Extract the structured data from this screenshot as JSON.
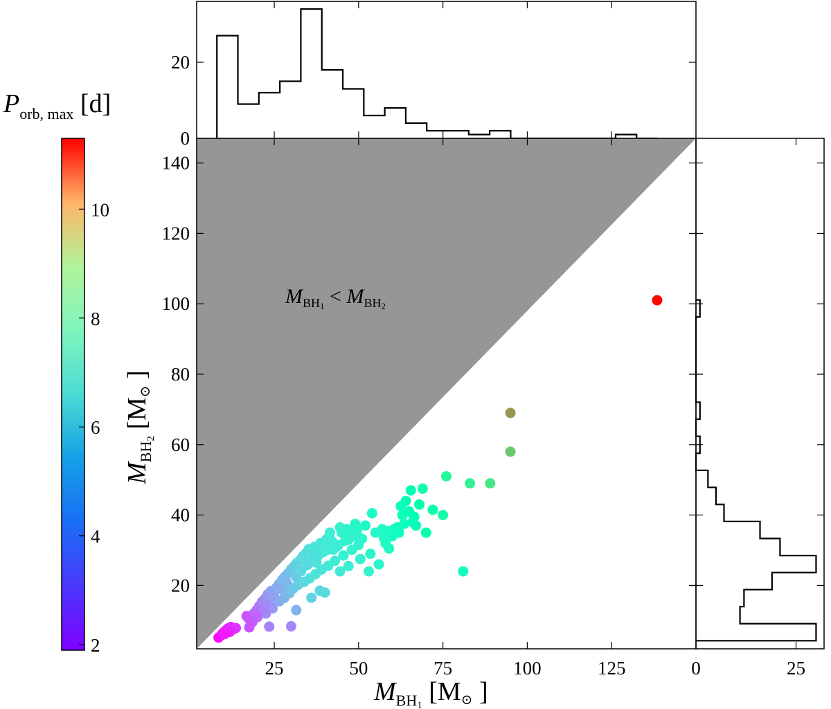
{
  "chart_data": {
    "type": "scatter",
    "region_label": {
      "main": "M",
      "sub1": "BH",
      "sub1_idx": "1",
      "op": " < ",
      "main2": "M",
      "sub2": "BH",
      "sub2_idx": "2"
    },
    "x_axis": {
      "label_main": "M",
      "label_sub": "BH",
      "label_sub_idx": "1",
      "label_units": "[M",
      "label_units_close": "]",
      "sun_symbol": "⊙",
      "ticks": [
        25,
        50,
        75,
        100,
        125
      ],
      "range": [
        2.0,
        150.0
      ]
    },
    "y_axis": {
      "label_main": "M",
      "label_sub": "BH",
      "label_sub_idx": "2",
      "label_units": "[M",
      "label_units_close": "]",
      "sun_symbol": "⊙",
      "ticks": [
        20,
        40,
        60,
        80,
        100,
        120,
        140
      ],
      "range": [
        2.0,
        147.0
      ]
    },
    "colorbar": {
      "title_main": "P",
      "title_sub": "orb, max",
      "title_units": "[d]",
      "ticks": [
        2,
        4,
        6,
        8,
        10
      ],
      "range": [
        1.9,
        11.3
      ],
      "colormap": "rainbow"
    },
    "top_hist": {
      "edges": [
        8,
        14.22,
        20.44,
        26.66,
        32.88,
        39.1,
        45.32,
        51.54,
        57.76,
        63.98,
        70.2,
        76.42,
        82.64,
        88.86,
        95.08,
        101.3,
        107.52,
        113.74,
        119.96,
        126.18,
        132.4,
        138.62
      ],
      "counts": [
        27,
        9,
        12,
        15,
        34,
        18,
        13,
        6,
        8,
        4,
        2,
        2,
        1,
        2,
        0,
        0,
        0,
        0,
        0,
        1,
        0
      ],
      "ticks": [
        0,
        20
      ],
      "range": [
        0,
        36
      ]
    },
    "right_hist": {
      "edges": [
        4.3,
        9.14,
        13.98,
        18.82,
        23.66,
        28.5,
        33.34,
        38.18,
        43.02,
        47.86,
        52.7,
        57.54,
        62.38,
        67.22,
        72.06,
        76.9,
        81.74,
        86.58,
        91.42,
        96.26,
        101.1
      ],
      "counts": [
        30,
        11,
        12,
        19,
        30,
        21,
        16,
        7,
        5,
        3,
        0,
        1,
        0,
        1,
        0,
        0,
        0,
        0,
        0,
        1
      ],
      "ticks": [
        0,
        25
      ],
      "range": [
        0,
        32
      ]
    },
    "points": [
      [
        8.5,
        5.2,
        2.0
      ],
      [
        9.2,
        5.8,
        2.1
      ],
      [
        9.8,
        6.5,
        2.1
      ],
      [
        10.6,
        7.2,
        2.3
      ],
      [
        11.3,
        7.8,
        2.3
      ],
      [
        12.1,
        8.2,
        2.4
      ],
      [
        12.8,
        7.5,
        2.4
      ],
      [
        13.6,
        7.9,
        2.5
      ],
      [
        11.8,
        6.8,
        2.3
      ],
      [
        10.3,
        6.2,
        2.2
      ],
      [
        17.5,
        10.5,
        3.0
      ],
      [
        18.2,
        11.2,
        3.0
      ],
      [
        19.0,
        12.1,
        3.2
      ],
      [
        19.8,
        13.0,
        3.3
      ],
      [
        20.6,
        14.2,
        3.4
      ],
      [
        21.4,
        15.4,
        3.5
      ],
      [
        22.3,
        16.3,
        3.7
      ],
      [
        23.1,
        17.5,
        3.8
      ],
      [
        24.0,
        18.4,
        3.9
      ],
      [
        24.8,
        17.3,
        3.9
      ],
      [
        25.6,
        19.3,
        4.1
      ],
      [
        26.4,
        20.4,
        4.2
      ],
      [
        27.3,
        21.6,
        4.3
      ],
      [
        28.2,
        22.5,
        4.3
      ],
      [
        29.1,
        23.4,
        4.4
      ],
      [
        30.0,
        24.6,
        4.6
      ],
      [
        30.9,
        25.5,
        4.7
      ],
      [
        31.7,
        26.4,
        4.8
      ],
      [
        32.6,
        27.1,
        4.9
      ],
      [
        33.5,
        28.3,
        5.0
      ],
      [
        34.4,
        29.1,
        5.1
      ],
      [
        35.2,
        30.3,
        5.1
      ],
      [
        36.1,
        29.6,
        5.1
      ],
      [
        37.0,
        31.0,
        5.2
      ],
      [
        37.8,
        30.1,
        5.2
      ],
      [
        38.7,
        32.0,
        5.3
      ],
      [
        39.6,
        31.3,
        5.3
      ],
      [
        40.5,
        33.1,
        5.4
      ],
      [
        41.3,
        34.0,
        5.4
      ],
      [
        42.2,
        32.5,
        5.4
      ],
      [
        21.0,
        12.5,
        3.3
      ],
      [
        23.0,
        14.6,
        3.6
      ],
      [
        25.5,
        16.0,
        3.9
      ],
      [
        27.5,
        18.8,
        4.2
      ],
      [
        29.0,
        20.2,
        4.4
      ],
      [
        31.5,
        22.4,
        4.7
      ],
      [
        33.0,
        24.1,
        4.9
      ],
      [
        34.8,
        25.8,
        5.0
      ],
      [
        36.5,
        27.3,
        5.1
      ],
      [
        38.2,
        28.6,
        5.2
      ],
      [
        40.0,
        29.8,
        5.3
      ],
      [
        42.5,
        30.2,
        5.4
      ],
      [
        44.0,
        31.4,
        5.5
      ],
      [
        46.0,
        32.7,
        5.6
      ],
      [
        47.5,
        34.5,
        5.7
      ],
      [
        49.5,
        35.6,
        5.8
      ],
      [
        51.0,
        33.3,
        5.8
      ],
      [
        48.0,
        30.1,
        5.7
      ],
      [
        45.5,
        28.5,
        5.6
      ],
      [
        43.0,
        27.0,
        5.5
      ],
      [
        41.0,
        25.6,
        5.4
      ],
      [
        39.0,
        24.5,
        5.3
      ],
      [
        37.2,
        23.2,
        5.2
      ],
      [
        35.5,
        22.0,
        5.1
      ],
      [
        33.8,
        21.0,
        5.0
      ],
      [
        32.0,
        20.1,
        4.8
      ],
      [
        30.5,
        19.0,
        4.6
      ],
      [
        29.5,
        17.8,
        4.5
      ],
      [
        28.0,
        16.5,
        4.3
      ],
      [
        26.5,
        15.5,
        4.1
      ],
      [
        24.5,
        13.5,
        3.8
      ],
      [
        22.5,
        12.0,
        3.6
      ],
      [
        20.0,
        11.0,
        3.2
      ],
      [
        18.5,
        9.6,
        3.0
      ],
      [
        16.8,
        11.3,
        2.9
      ],
      [
        23.5,
        8.3,
        3.5
      ],
      [
        17.6,
        8.1,
        2.9
      ],
      [
        30.0,
        8.4,
        3.6
      ],
      [
        31.5,
        13.0,
        4.2
      ],
      [
        36.0,
        16.5,
        4.8
      ],
      [
        38.5,
        18.5,
        4.9
      ],
      [
        40.0,
        18.0,
        5.0
      ],
      [
        44.5,
        24.0,
        5.4
      ],
      [
        47.0,
        25.5,
        5.5
      ],
      [
        50.5,
        27.5,
        5.6
      ],
      [
        53.5,
        29.0,
        5.8
      ],
      [
        53.0,
        24.0,
        5.7
      ],
      [
        55.0,
        35.0,
        5.9
      ],
      [
        57.0,
        36.0,
        6.0
      ],
      [
        58.0,
        32.0,
        6.0
      ],
      [
        60.0,
        34.0,
        6.2
      ],
      [
        62.0,
        35.0,
        6.3
      ],
      [
        63.0,
        40.0,
        6.4
      ],
      [
        64.0,
        44.0,
        6.5
      ],
      [
        65.0,
        41.0,
        6.5
      ],
      [
        66.0,
        38.0,
        6.5
      ],
      [
        67.0,
        37.0,
        6.6
      ],
      [
        68.0,
        43.0,
        6.7
      ],
      [
        70.0,
        35.0,
        6.8
      ],
      [
        69.0,
        47.5,
        6.9
      ],
      [
        72.0,
        41.5,
        6.9
      ],
      [
        75.0,
        40.0,
        7.0
      ],
      [
        76.0,
        51.0,
        7.3
      ],
      [
        83.0,
        49.0,
        7.6
      ],
      [
        89.0,
        49.0,
        7.9
      ],
      [
        81.0,
        24.0,
        6.2
      ],
      [
        95.0,
        58.0,
        8.6
      ],
      [
        95.0,
        69.0,
        9.4
      ],
      [
        138.5,
        101.0,
        11.2
      ],
      [
        54.0,
        40.5,
        6.1
      ],
      [
        59.0,
        30.5,
        6.0
      ],
      [
        61.5,
        36.5,
        6.3
      ],
      [
        65.5,
        47.0,
        6.6
      ],
      [
        63.5,
        37.5,
        6.4
      ],
      [
        56.0,
        26.0,
        5.8
      ],
      [
        52.0,
        37.0,
        6.1
      ],
      [
        45.0,
        35.0,
        5.7
      ],
      [
        46.5,
        36.0,
        5.8
      ],
      [
        48.5,
        34.0,
        5.7
      ],
      [
        50.0,
        31.5,
        5.7
      ],
      [
        43.5,
        31.0,
        5.5
      ],
      [
        39.5,
        29.5,
        5.3
      ],
      [
        37.5,
        26.5,
        5.2
      ],
      [
        35.0,
        26.0,
        5.0
      ],
      [
        33.0,
        27.5,
        5.0
      ],
      [
        28.5,
        21.0,
        4.3
      ],
      [
        26.0,
        19.0,
        4.1
      ],
      [
        24.0,
        17.0,
        3.9
      ],
      [
        22.0,
        13.5,
        3.5
      ],
      [
        19.5,
        11.5,
        3.1
      ],
      [
        66.5,
        39.5,
        6.5
      ],
      [
        62.5,
        42.5,
        6.4
      ],
      [
        60.5,
        36.0,
        6.2
      ],
      [
        58.5,
        35.5,
        6.1
      ],
      [
        57.5,
        33.5,
        6.0
      ],
      [
        49.0,
        37.5,
        5.9
      ],
      [
        47.0,
        33.0,
        5.7
      ],
      [
        44.5,
        36.5,
        5.6
      ],
      [
        41.5,
        35.0,
        5.5
      ],
      [
        40.5,
        30.0,
        5.4
      ]
    ]
  }
}
